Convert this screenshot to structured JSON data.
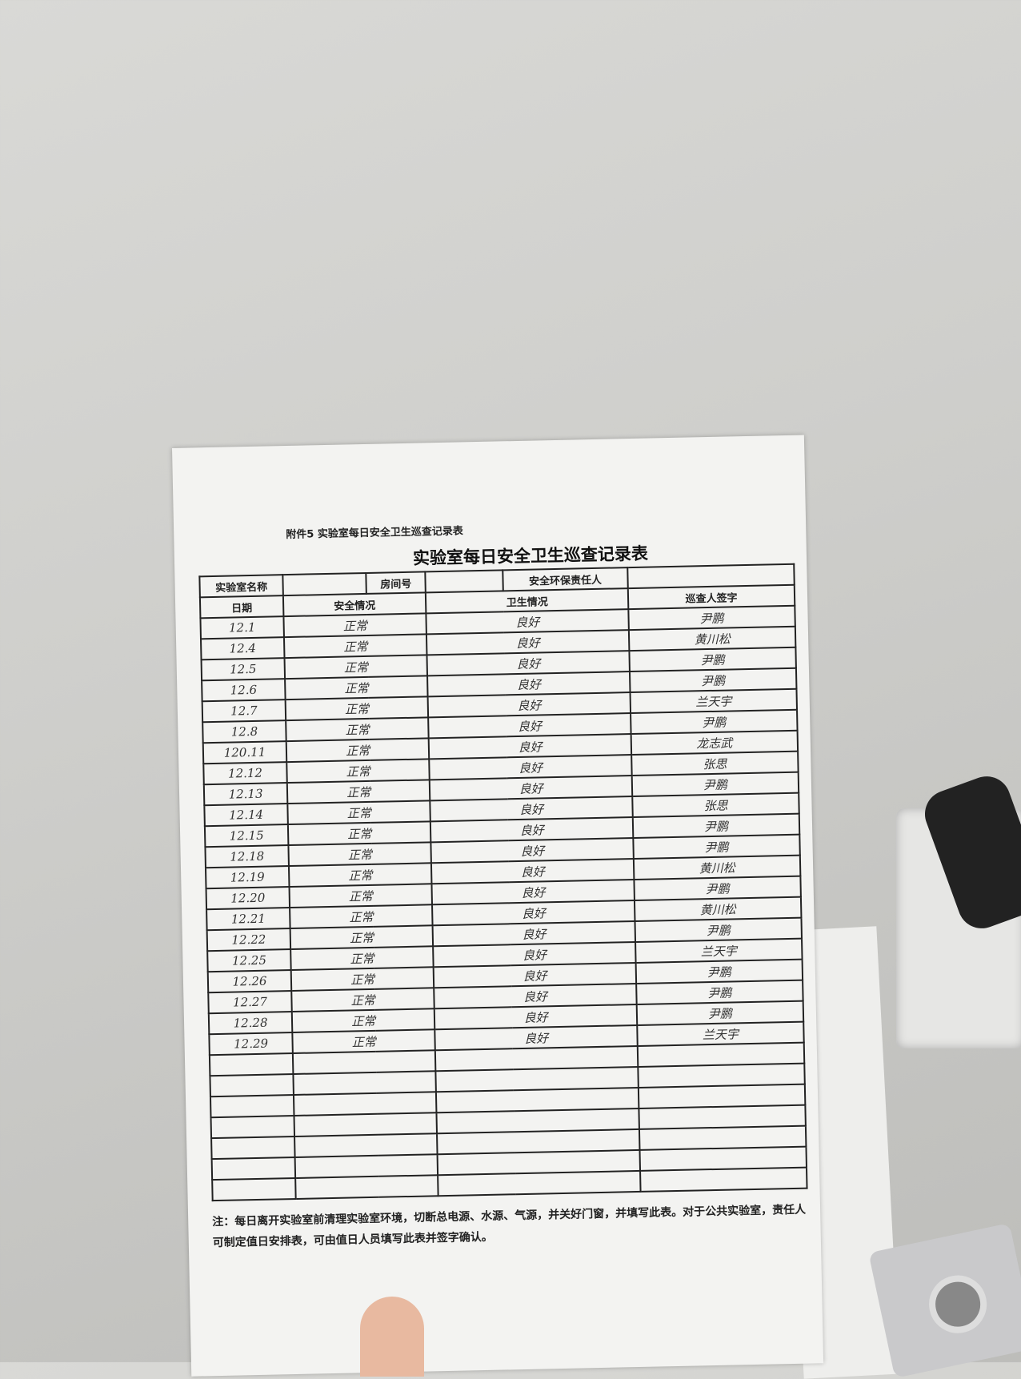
{
  "form": {
    "attachment_label": "附件5 实验室每日安全卫生巡查记录表",
    "title": "实验室每日安全卫生巡查记录表",
    "header": {
      "lab_name_label": "实验室名称",
      "room_label": "房间号",
      "responsible_label": "安全环保责任人",
      "date_label": "日期",
      "safety_label": "安全情况",
      "hygiene_label": "卫生情况",
      "inspector_label": "巡查人签字"
    },
    "rows": [
      {
        "date": "12.1",
        "safety": "正常",
        "hygiene": "良好",
        "inspector": "尹鹏"
      },
      {
        "date": "12.4",
        "safety": "正常",
        "hygiene": "良好",
        "inspector": "黄川松"
      },
      {
        "date": "12.5",
        "safety": "正常",
        "hygiene": "良好",
        "inspector": "尹鹏"
      },
      {
        "date": "12.6",
        "safety": "正常",
        "hygiene": "良好",
        "inspector": "尹鹏"
      },
      {
        "date": "12.7",
        "safety": "正常",
        "hygiene": "良好",
        "inspector": "兰天宇"
      },
      {
        "date": "12.8",
        "safety": "正常",
        "hygiene": "良好",
        "inspector": "尹鹏"
      },
      {
        "date": "120.11",
        "safety": "正常",
        "hygiene": "良好",
        "inspector": "龙志武"
      },
      {
        "date": "12.12",
        "safety": "正常",
        "hygiene": "良好",
        "inspector": "张思"
      },
      {
        "date": "12.13",
        "safety": "正常",
        "hygiene": "良好",
        "inspector": "尹鹏"
      },
      {
        "date": "12.14",
        "safety": "正常",
        "hygiene": "良好",
        "inspector": "张思"
      },
      {
        "date": "12.15",
        "safety": "正常",
        "hygiene": "良好",
        "inspector": "尹鹏"
      },
      {
        "date": "12.18",
        "safety": "正常",
        "hygiene": "良好",
        "inspector": "尹鹏"
      },
      {
        "date": "12.19",
        "safety": "正常",
        "hygiene": "良好",
        "inspector": "黄川松"
      },
      {
        "date": "12.20",
        "safety": "正常",
        "hygiene": "良好",
        "inspector": "尹鹏"
      },
      {
        "date": "12.21",
        "safety": "正常",
        "hygiene": "良好",
        "inspector": "黄川松"
      },
      {
        "date": "12.22",
        "safety": "正常",
        "hygiene": "良好",
        "inspector": "尹鹏"
      },
      {
        "date": "12.25",
        "safety": "正常",
        "hygiene": "良好",
        "inspector": "兰天宇"
      },
      {
        "date": "12.26",
        "safety": "正常",
        "hygiene": "良好",
        "inspector": "尹鹏"
      },
      {
        "date": "12.27",
        "safety": "正常",
        "hygiene": "良好",
        "inspector": "尹鹏"
      },
      {
        "date": "12.28",
        "safety": "正常",
        "hygiene": "良好",
        "inspector": "尹鹏"
      },
      {
        "date": "12.29",
        "safety": "正常",
        "hygiene": "良好",
        "inspector": "兰天宇"
      }
    ],
    "note": "注：每日离开实验室前清理实验室环境，切断总电源、水源、气源，并关好门窗，并填写此表。对于公共实验室，责任人可制定值日安排表，可由值日人员填写此表并签字确认。"
  }
}
